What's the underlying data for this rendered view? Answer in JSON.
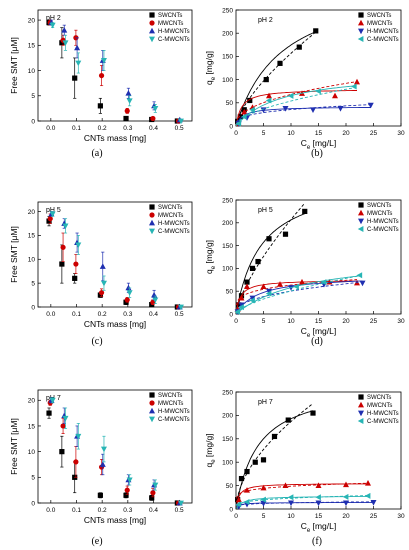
{
  "panel_labels": [
    "(a)",
    "(b)",
    "(c)",
    "(d)",
    "(e)",
    "(f)"
  ],
  "series_colors": {
    "SWCNTs": "#000000",
    "MWCNTs": "#cc0000",
    "H-MWCNTs": "#1f2fb0",
    "C-MWCNTs": "#27b5b5"
  },
  "series_markers": {
    "SWCNTs": "square",
    "MWCNTs": "circle-or-triangle-up",
    "H-MWCNTs": "triangle-up-or-down",
    "C-MWCNTs": "triangle-down-or-left"
  },
  "chart_data": [
    {
      "panel": "a",
      "type": "scatter",
      "annotation": "pH 2",
      "xlabel": "CNTs mass [mg]",
      "ylabel": "Free SMT [μM]",
      "xlim": [
        -0.05,
        0.55
      ],
      "ylim": [
        0,
        22
      ],
      "xticks": [
        "0.0",
        "0.1",
        "0.2",
        "0.3",
        "0.4",
        "0.5"
      ],
      "yticks": [
        "0",
        "5",
        "10",
        "15",
        "20"
      ],
      "x": [
        0,
        0.05,
        0.1,
        0.2,
        0.3,
        0.4,
        0.5
      ],
      "legend_position": "top-right",
      "series": [
        {
          "name": "SWCNTs",
          "marker": "square",
          "values": [
            19.5,
            15.5,
            8.5,
            3.0,
            0.5,
            0.3,
            0.0
          ],
          "errors": [
            0.5,
            3.0,
            4.0,
            1.5,
            0.3,
            0.3,
            0.0
          ]
        },
        {
          "name": "MWCNTs",
          "marker": "circle",
          "values": [
            19.5,
            16.0,
            16.5,
            9.0,
            2.0,
            0.5,
            0.0
          ],
          "errors": [
            0.5,
            1.0,
            1.5,
            2.0,
            0.5,
            0.3,
            0.0
          ]
        },
        {
          "name": "H-MWCNTs",
          "marker": "triangle-up",
          "values": [
            19.5,
            18.0,
            14.5,
            12.0,
            5.5,
            3.0,
            0.2
          ],
          "errors": [
            0.5,
            1.0,
            2.0,
            2.0,
            1.0,
            0.8,
            0.2
          ]
        },
        {
          "name": "C-MWCNTs",
          "marker": "triangle-down",
          "values": [
            19.0,
            15.5,
            11.5,
            12.0,
            4.0,
            2.5,
            0.0
          ],
          "errors": [
            0.5,
            1.5,
            2.0,
            2.0,
            1.0,
            0.8,
            0.0
          ]
        }
      ]
    },
    {
      "panel": "b",
      "type": "scatter",
      "annotation": "pH 2",
      "xlabel": "Ce [mg/L]",
      "ylabel": "qe [mg/g]",
      "xlim": [
        0,
        30
      ],
      "ylim": [
        0,
        250
      ],
      "xticks": [
        "0",
        "5",
        "10",
        "15",
        "20",
        "25",
        "30"
      ],
      "yticks": [
        "0",
        "50",
        "100",
        "150",
        "200",
        "250"
      ],
      "legend_position": "top-right",
      "series": [
        {
          "name": "SWCNTs",
          "marker": "square",
          "x": [
            0.3,
            0.8,
            1.5,
            2.5,
            5.5,
            8,
            11.5,
            14.5
          ],
          "y": [
            10,
            20,
            35,
            55,
            100,
            135,
            170,
            205
          ],
          "fit_solid": {
            "qm": 320,
            "K": 0.12
          },
          "fit_dashed": {
            "Kf": 32,
            "n": 1.45
          }
        },
        {
          "name": "MWCNTs",
          "marker": "triangle-up",
          "x": [
            0.5,
            1.5,
            3,
            6,
            12,
            18,
            22
          ],
          "y": [
            5,
            30,
            40,
            65,
            70,
            65,
            95
          ],
          "fit_solid": {
            "qm": 80,
            "K": 1.0
          },
          "fit_dashed": {
            "Kf": 25,
            "n": 2.3
          }
        },
        {
          "name": "H-MWCNTs",
          "marker": "triangle-down",
          "x": [
            0.5,
            2,
            5,
            9,
            14,
            19,
            24.5
          ],
          "y": [
            5,
            18,
            35,
            38,
            35,
            38,
            45
          ],
          "fit_solid": {
            "qm": 42,
            "K": 0.8
          },
          "fit_dashed": {
            "Kf": 18,
            "n": 3.4
          }
        },
        {
          "name": "C-MWCNTs",
          "marker": "triangle-left",
          "x": [
            0.5,
            1.5,
            3,
            6,
            10,
            15,
            21.5
          ],
          "y": [
            5,
            20,
            35,
            55,
            65,
            75,
            85
          ],
          "fit_solid": {
            "qm": 120,
            "K": 0.12
          },
          "fit_dashed": {
            "Kf": 15,
            "n": 1.8
          }
        }
      ]
    },
    {
      "panel": "c",
      "type": "scatter",
      "annotation": "pH 5",
      "xlabel": "CNTs mass [mg]",
      "ylabel": "Free SMT [μM]",
      "xlim": [
        -0.05,
        0.55
      ],
      "ylim": [
        0,
        22
      ],
      "xticks": [
        "0.0",
        "0.1",
        "0.2",
        "0.3",
        "0.4",
        "0.5"
      ],
      "yticks": [
        "0",
        "5",
        "10",
        "15",
        "20"
      ],
      "x": [
        0,
        0.05,
        0.1,
        0.2,
        0.3,
        0.4,
        0.5
      ],
      "legend_position": "top-right",
      "series": [
        {
          "name": "SWCNTs",
          "marker": "square",
          "values": [
            18.0,
            9.0,
            6.0,
            2.5,
            1.0,
            0.5,
            0.0
          ],
          "errors": [
            1.0,
            4.0,
            1.0,
            0.5,
            0.5,
            0.3,
            0.0
          ]
        },
        {
          "name": "MWCNTs",
          "marker": "circle",
          "values": [
            18.5,
            12.5,
            9.0,
            3.0,
            1.5,
            1.0,
            0.0
          ],
          "errors": [
            1.0,
            3.0,
            2.0,
            0.8,
            0.5,
            0.5,
            0.0
          ]
        },
        {
          "name": "H-MWCNTs",
          "marker": "triangle-up",
          "values": [
            19.5,
            17.5,
            13.5,
            8.5,
            4.0,
            2.5,
            0.0
          ],
          "errors": [
            0.5,
            1.0,
            2.0,
            3.0,
            1.0,
            1.0,
            0.0
          ]
        },
        {
          "name": "C-MWCNTs",
          "marker": "triangle-down",
          "values": [
            19.5,
            17.0,
            13.0,
            5.0,
            3.0,
            1.5,
            0.0
          ],
          "errors": [
            0.5,
            1.5,
            2.0,
            1.5,
            1.0,
            0.8,
            0.0
          ]
        }
      ]
    },
    {
      "panel": "d",
      "type": "scatter",
      "annotation": "pH 5",
      "xlabel": "Ce [mg/L]",
      "ylabel": "qe [mg/g]",
      "xlim": [
        0,
        30
      ],
      "ylim": [
        0,
        250
      ],
      "xticks": [
        "0",
        "5",
        "10",
        "15",
        "20",
        "25",
        "30"
      ],
      "yticks": [
        "0",
        "50",
        "100",
        "150",
        "200",
        "250"
      ],
      "legend_position": "top-right",
      "series": [
        {
          "name": "SWCNTs",
          "marker": "square",
          "x": [
            0.5,
            1,
            2,
            3,
            4,
            6,
            9,
            12.5
          ],
          "y": [
            20,
            40,
            70,
            100,
            115,
            165,
            175,
            225
          ],
          "fit_solid": {
            "qm": 300,
            "K": 0.22
          },
          "fit_dashed": {
            "Kf": 40,
            "n": 1.4
          }
        },
        {
          "name": "MWCNTs",
          "marker": "triangle-up",
          "x": [
            0.3,
            1,
            2,
            5,
            8,
            12,
            17,
            22
          ],
          "y": [
            10,
            35,
            60,
            60,
            65,
            70,
            70,
            68
          ],
          "fit_solid": {
            "qm": 75,
            "K": 1.2
          },
          "fit_dashed": {
            "Kf": 38,
            "n": 4.5
          }
        },
        {
          "name": "H-MWCNTs",
          "marker": "triangle-down",
          "x": [
            0.3,
            1,
            3,
            6,
            10,
            16,
            23
          ],
          "y": [
            5,
            20,
            35,
            50,
            58,
            65,
            68
          ],
          "fit_solid": {
            "qm": 85,
            "K": 0.25
          },
          "fit_dashed": {
            "Kf": 20,
            "n": 2.5
          }
        },
        {
          "name": "C-MWCNTs",
          "marker": "triangle-left",
          "x": [
            0.3,
            1,
            3,
            6,
            11,
            16,
            22.5
          ],
          "y": [
            5,
            15,
            30,
            45,
            60,
            70,
            85
          ],
          "fit_solid": {
            "qm": 130,
            "K": 0.08
          },
          "fit_dashed": {
            "Kf": 12,
            "n": 1.6
          }
        }
      ]
    },
    {
      "panel": "e",
      "type": "scatter",
      "annotation": "pH 7",
      "xlabel": "CNTs mass [mg]",
      "ylabel": "Free SMT [μM]",
      "xlim": [
        -0.05,
        0.55
      ],
      "ylim": [
        0,
        22
      ],
      "xticks": [
        "0.0",
        "0.1",
        "0.2",
        "0.3",
        "0.4",
        "0.5"
      ],
      "yticks": [
        "0",
        "5",
        "10",
        "15",
        "20"
      ],
      "x": [
        0,
        0.05,
        0.1,
        0.2,
        0.3,
        0.4,
        0.5
      ],
      "legend_position": "top-right",
      "series": [
        {
          "name": "SWCNTs",
          "marker": "square",
          "values": [
            17.5,
            10.0,
            5.0,
            1.5,
            1.5,
            1.0,
            0.0
          ],
          "errors": [
            1.0,
            3.0,
            3.0,
            0.5,
            0.5,
            0.5,
            0.0
          ]
        },
        {
          "name": "MWCNTs",
          "marker": "circle",
          "values": [
            19.5,
            15.0,
            8.0,
            7.0,
            2.5,
            2.0,
            0.0
          ],
          "errors": [
            0.5,
            1.5,
            3.0,
            1.5,
            0.8,
            0.8,
            0.0
          ]
        },
        {
          "name": "H-MWCNTs",
          "marker": "triangle-up",
          "values": [
            20.0,
            17.0,
            13.0,
            7.5,
            4.5,
            3.5,
            0.0
          ],
          "errors": [
            0.5,
            1.5,
            2.0,
            2.0,
            1.0,
            1.0,
            0.0
          ]
        },
        {
          "name": "C-MWCNTs",
          "marker": "triangle-down",
          "values": [
            20.0,
            16.5,
            13.0,
            10.5,
            4.5,
            3.5,
            0.0
          ],
          "errors": [
            0.5,
            2.0,
            2.5,
            2.5,
            1.0,
            1.0,
            0.0
          ]
        }
      ]
    },
    {
      "panel": "f",
      "type": "scatter",
      "annotation": "pH 7",
      "xlabel": "Ce [mg/L]",
      "ylabel": "qe [mg/g]",
      "xlim": [
        0,
        30
      ],
      "ylim": [
        0,
        250
      ],
      "xticks": [
        "0",
        "5",
        "10",
        "15",
        "20",
        "25",
        "30"
      ],
      "yticks": [
        "0",
        "50",
        "100",
        "150",
        "200",
        "250"
      ],
      "legend_position": "top-right",
      "series": [
        {
          "name": "SWCNTs",
          "marker": "square",
          "x": [
            0.3,
            1,
            2,
            3.5,
            5,
            7,
            9.5,
            14
          ],
          "y": [
            20,
            65,
            80,
            100,
            105,
            155,
            190,
            205
          ],
          "fit_solid": {
            "qm": 270,
            "K": 0.25
          },
          "fit_dashed": {
            "Kf": 52,
            "n": 1.8
          }
        },
        {
          "name": "MWCNTs",
          "marker": "triangle-up",
          "x": [
            0.5,
            2,
            5,
            9,
            15,
            20,
            24
          ],
          "y": [
            20,
            40,
            45,
            50,
            50,
            52,
            55
          ],
          "fit_solid": {
            "qm": 55,
            "K": 1.8
          },
          "fit_dashed": {
            "Kf": 35,
            "n": 7
          }
        },
        {
          "name": "H-MWCNTs",
          "marker": "triangle-down",
          "x": [
            0.5,
            2,
            5,
            10,
            15,
            20,
            25
          ],
          "y": [
            5,
            10,
            12,
            13,
            13,
            13,
            14
          ],
          "fit_solid": {
            "qm": 14,
            "K": 2.0
          },
          "fit_dashed": {
            "Kf": 9,
            "n": 6
          }
        },
        {
          "name": "C-MWCNTs",
          "marker": "triangle-left",
          "x": [
            0.5,
            2,
            5,
            10,
            15,
            20,
            24
          ],
          "y": [
            10,
            15,
            20,
            25,
            25,
            26,
            28
          ],
          "fit_solid": {
            "qm": 28,
            "K": 0.8
          },
          "fit_dashed": {
            "Kf": 13,
            "n": 4
          }
        }
      ]
    }
  ]
}
